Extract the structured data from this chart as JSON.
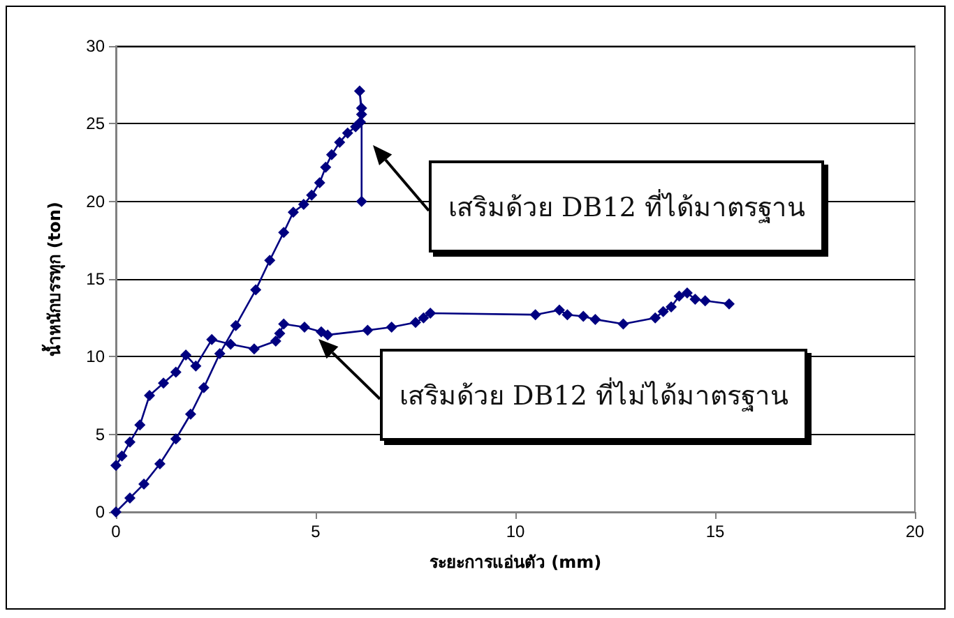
{
  "chart_data": {
    "type": "line",
    "xlabel": "ระยะการแอ่นตัว (mm)",
    "ylabel": "น้ำหนักบรรทุก (ton)",
    "xlim": [
      0,
      20
    ],
    "xticks": [
      0,
      5,
      10,
      15,
      20
    ],
    "ylim": [
      0,
      30
    ],
    "yticks": [
      0,
      5,
      10,
      15,
      20,
      25,
      30
    ],
    "grid": "y",
    "marker": "diamond",
    "line_style": "solid",
    "series": [
      {
        "color": "#000080",
        "x": [
          0,
          0.35,
          0.7,
          1.1,
          1.5,
          1.87,
          2.2,
          2.6,
          3.0,
          3.5,
          3.85,
          4.2,
          4.44,
          4.7,
          4.9,
          5.1,
          5.25,
          5.4,
          5.6,
          5.8,
          6.0,
          6.12,
          6.15,
          6.1,
          6.15,
          6.15
        ],
        "values": [
          0,
          0.9,
          1.8,
          3.1,
          4.7,
          6.3,
          8.0,
          10.2,
          12.0,
          14.3,
          16.2,
          18.0,
          19.3,
          19.8,
          20.4,
          21.2,
          22.2,
          23.0,
          23.8,
          24.4,
          24.8,
          25.1,
          26.0,
          27.1,
          25.6,
          20
        ]
      },
      {
        "color": "#000080",
        "x": [
          0,
          0.15,
          0.35,
          0.6,
          0.84,
          1.19,
          1.5,
          1.75,
          2.0,
          2.4,
          2.87,
          3.46,
          4.0,
          4.1,
          4.2,
          4.72,
          5.14,
          5.3,
          6.3,
          6.9,
          7.5,
          7.7,
          7.87,
          10.5,
          11.1,
          11.3,
          11.7,
          12.0,
          12.7,
          13.5,
          13.7,
          13.9,
          14.1,
          14.3,
          14.5,
          14.75,
          15.35
        ],
        "values": [
          3,
          3.6,
          4.5,
          5.6,
          7.5,
          8.3,
          9.0,
          10.1,
          9.4,
          11.1,
          10.8,
          10.5,
          11.0,
          11.5,
          12.1,
          11.9,
          11.6,
          11.4,
          11.7,
          11.9,
          12.2,
          12.5,
          12.8,
          12.7,
          13.0,
          12.7,
          12.6,
          12.4,
          12.1,
          12.5,
          12.9,
          13.2,
          13.9,
          14.1,
          13.7,
          13.6,
          13.4
        ]
      }
    ],
    "annotations": [
      "เสริมด้วย DB12 ที่ได้มาตรฐาน",
      "เสริมด้วย DB12 ที่ไม่ได้มาตรฐาน"
    ]
  }
}
